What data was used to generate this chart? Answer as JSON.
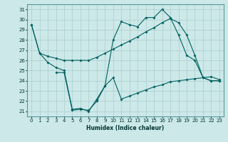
{
  "xlabel": "Humidex (Indice chaleur)",
  "bg_color": "#cce8e8",
  "grid_color": "#aacccc",
  "line_color": "#006060",
  "xlim": [
    -0.5,
    23.5
  ],
  "ylim": [
    20.5,
    31.5
  ],
  "yticks": [
    21,
    22,
    23,
    24,
    25,
    26,
    27,
    28,
    29,
    30,
    31
  ],
  "xticks": [
    0,
    1,
    2,
    3,
    4,
    5,
    6,
    7,
    8,
    9,
    10,
    11,
    12,
    13,
    14,
    15,
    16,
    17,
    18,
    19,
    20,
    21,
    22,
    23
  ],
  "line1_x": [
    0,
    1,
    2,
    3,
    4,
    5,
    6,
    7,
    8,
    9,
    10,
    11,
    12,
    13,
    14,
    15,
    16,
    17,
    18,
    19,
    20,
    21,
    22,
    23
  ],
  "line1_y": [
    29.5,
    26.7,
    26.4,
    26.2,
    26.0,
    26.0,
    26.0,
    26.0,
    26.3,
    26.7,
    27.1,
    27.5,
    27.9,
    28.3,
    28.8,
    29.2,
    29.7,
    30.1,
    29.7,
    28.5,
    26.5,
    24.3,
    24.0,
    24.0
  ],
  "line2_x": [
    0,
    1,
    2,
    3,
    4,
    5,
    6,
    7,
    8,
    9,
    10,
    11,
    12,
    13,
    14,
    15,
    16,
    17,
    18,
    19,
    20,
    21,
    22,
    23
  ],
  "line2_y": [
    29.5,
    26.7,
    25.8,
    25.3,
    25.0,
    21.2,
    21.3,
    21.0,
    22.2,
    23.5,
    28.0,
    29.8,
    29.5,
    29.3,
    30.2,
    30.2,
    31.0,
    30.2,
    28.5,
    26.5,
    26.0,
    24.3,
    24.0,
    24.0
  ],
  "line3_x": [
    3,
    4,
    5,
    6,
    7,
    8,
    9,
    10,
    11,
    12,
    13,
    14,
    15,
    16,
    17,
    18,
    19,
    20,
    21,
    22,
    23
  ],
  "line3_y": [
    24.8,
    24.8,
    21.1,
    21.2,
    21.1,
    22.0,
    23.5,
    24.3,
    22.2,
    22.5,
    22.8,
    23.1,
    23.4,
    23.6,
    23.9,
    24.0,
    24.1,
    24.2,
    24.3,
    24.4,
    24.1
  ]
}
